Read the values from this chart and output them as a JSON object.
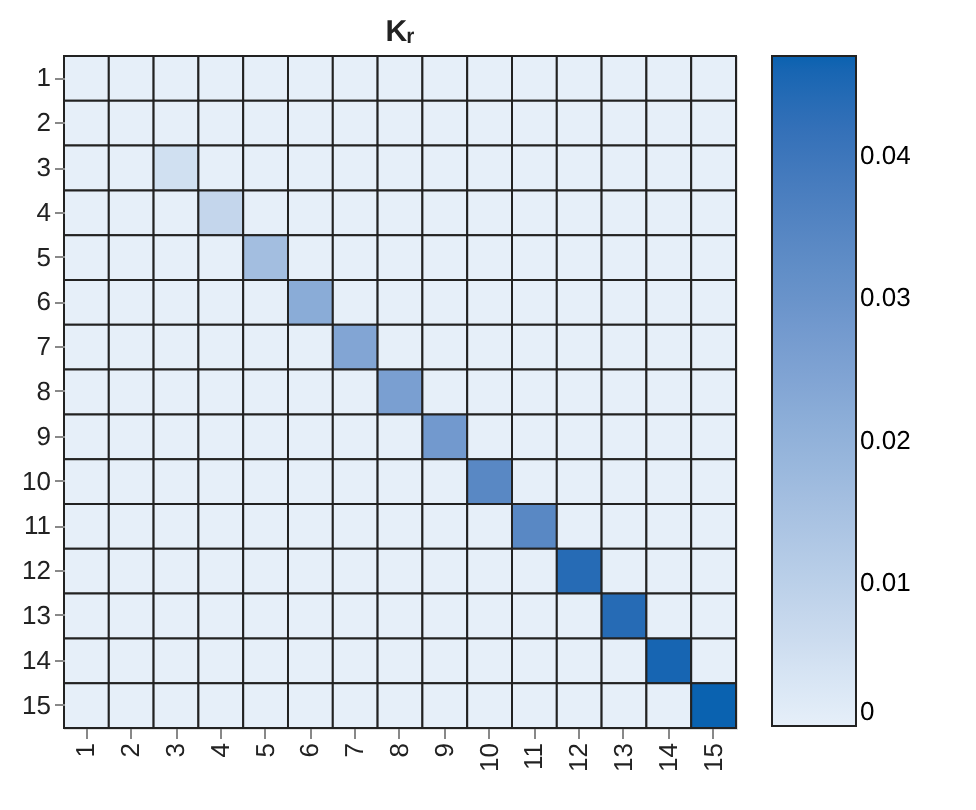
{
  "chart_data": {
    "type": "heatmap",
    "title": "Kᵣ",
    "categories": [
      "1",
      "2",
      "3",
      "4",
      "5",
      "6",
      "7",
      "8",
      "9",
      "10",
      "11",
      "12",
      "13",
      "14",
      "15"
    ],
    "y_categories": [
      "1",
      "2",
      "3",
      "4",
      "5",
      "6",
      "7",
      "8",
      "9",
      "10",
      "11",
      "12",
      "13",
      "14",
      "15"
    ],
    "cells": [
      [
        0,
        0,
        0,
        0,
        0,
        0,
        0,
        0,
        0,
        0,
        0,
        0,
        0,
        0,
        0
      ],
      [
        0,
        0,
        0,
        0,
        0,
        0,
        0,
        0,
        0,
        0,
        0,
        0,
        0,
        0,
        0
      ],
      [
        0,
        0,
        0.005,
        0,
        0,
        0,
        0,
        0,
        0,
        0,
        0,
        0,
        0,
        0,
        0
      ],
      [
        0,
        0,
        0,
        0.008,
        0,
        0,
        0,
        0,
        0,
        0,
        0,
        0,
        0,
        0,
        0
      ],
      [
        0,
        0,
        0,
        0,
        0.016,
        0,
        0,
        0,
        0,
        0,
        0,
        0,
        0,
        0,
        0
      ],
      [
        0,
        0,
        0,
        0,
        0,
        0.022,
        0,
        0,
        0,
        0,
        0,
        0,
        0,
        0,
        0
      ],
      [
        0,
        0,
        0,
        0,
        0,
        0,
        0.024,
        0,
        0,
        0,
        0,
        0,
        0,
        0,
        0
      ],
      [
        0,
        0,
        0,
        0,
        0,
        0,
        0,
        0.026,
        0,
        0,
        0,
        0,
        0,
        0,
        0
      ],
      [
        0,
        0,
        0,
        0,
        0,
        0,
        0,
        0,
        0.028,
        0,
        0,
        0,
        0,
        0,
        0
      ],
      [
        0,
        0,
        0,
        0,
        0,
        0,
        0,
        0,
        0,
        0.034,
        0,
        0,
        0,
        0,
        0
      ],
      [
        0,
        0,
        0,
        0,
        0,
        0,
        0,
        0,
        0,
        0,
        0.034,
        0,
        0,
        0,
        0
      ],
      [
        0,
        0,
        0,
        0,
        0,
        0,
        0,
        0,
        0,
        0,
        0,
        0.044,
        0,
        0,
        0
      ],
      [
        0,
        0,
        0,
        0,
        0,
        0,
        0,
        0,
        0,
        0,
        0,
        0,
        0.044,
        0,
        0
      ],
      [
        0,
        0,
        0,
        0,
        0,
        0,
        0,
        0,
        0,
        0,
        0,
        0,
        0,
        0.046,
        0
      ],
      [
        0,
        0,
        0,
        0,
        0,
        0,
        0,
        0,
        0,
        0,
        0,
        0,
        0,
        0,
        0.047
      ]
    ],
    "clim": [
      0,
      0.047
    ],
    "cticks": [
      0,
      0.01,
      0.02,
      0.03,
      0.04
    ],
    "colors": [
      "#e6eff9",
      "#0a62b0"
    ],
    "grid": false
  }
}
